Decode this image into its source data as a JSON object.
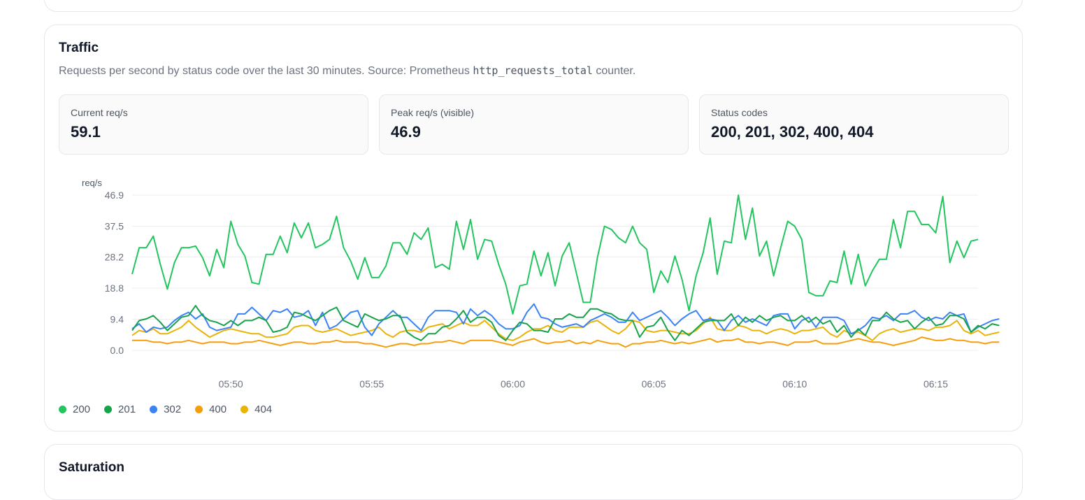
{
  "traffic": {
    "title": "Traffic",
    "description_pre": "Requests per second by status code over the last 30 minutes. Source: Prometheus ",
    "description_code": "http_requests_total",
    "description_post": " counter.",
    "stats": [
      {
        "label": "Current req/s",
        "value": "59.1"
      },
      {
        "label": "Peak req/s (visible)",
        "value": "46.9"
      },
      {
        "label": "Status codes",
        "value": "200, 201, 302, 400, 404"
      }
    ]
  },
  "next_card": {
    "title": "Saturation"
  },
  "chart_data": {
    "type": "line",
    "ylabel": "req/s",
    "ylim": [
      0,
      46.9
    ],
    "y_ticks": [
      "0.0",
      "9.4",
      "18.8",
      "28.2",
      "37.5",
      "46.9"
    ],
    "x_tick_labels": [
      "05:50",
      "05:55",
      "06:00",
      "06:05",
      "06:10",
      "06:15"
    ],
    "x_start_minute": 46.5,
    "x_step_minutes": 0.25,
    "grid": true,
    "legend": "bottom-left",
    "series": [
      {
        "name": "200",
        "color": "#22c55e",
        "values": [
          23,
          31,
          31,
          34.5,
          26,
          18.5,
          26.5,
          31,
          31,
          31.5,
          28,
          22.5,
          30.5,
          25,
          39,
          32,
          28.5,
          20.5,
          20,
          29,
          29,
          34.5,
          29.5,
          38.5,
          34,
          38.5,
          31,
          32,
          33.5,
          40.5,
          31,
          27,
          21.5,
          28,
          22,
          22,
          25.5,
          32.5,
          32.5,
          29,
          35.5,
          33.5,
          37,
          25,
          26,
          24.5,
          39,
          30.5,
          39.5,
          27.5,
          33.5,
          33,
          26,
          20,
          11,
          19.5,
          20,
          30,
          22.5,
          29.5,
          19.5,
          28.5,
          32.5,
          23.5,
          14.5,
          14.5,
          28,
          37.5,
          36.5,
          34,
          32.5,
          37.5,
          32.5,
          30.5,
          17.5,
          24,
          20.5,
          28.5,
          21.5,
          12,
          22.5,
          29.5,
          40,
          23,
          33,
          32.5,
          46.9,
          33.5,
          43,
          28.5,
          33,
          22.5,
          31,
          39,
          37.5,
          33.5,
          17.5,
          16.5,
          16.5,
          21,
          20.5,
          30,
          20,
          29,
          19.5,
          24,
          27.5,
          27.5,
          39.5,
          31,
          42,
          42,
          38,
          38,
          35.5,
          46.5,
          26.5,
          33,
          28,
          33,
          33.5
        ]
      },
      {
        "name": "201",
        "color": "#16a34a",
        "values": [
          6,
          9,
          9.5,
          10.5,
          8.5,
          6,
          8,
          10,
          10.5,
          13.5,
          10.5,
          9,
          8.5,
          7.5,
          9,
          7.5,
          9,
          9,
          10,
          9,
          5.5,
          6,
          7,
          11.5,
          11,
          10,
          9,
          10.5,
          12,
          13,
          9,
          8,
          7,
          11,
          10,
          9,
          9.5,
          10.5,
          10.5,
          5.5,
          4,
          3,
          5,
          5,
          7,
          7.5,
          9.5,
          12,
          8.5,
          10,
          10,
          8.5,
          4.5,
          3,
          6,
          8.5,
          8,
          6,
          6,
          5.5,
          9.5,
          9.5,
          11,
          10,
          10,
          12.5,
          12.5,
          11.5,
          11,
          9.5,
          9,
          9,
          4,
          7,
          7.5,
          10,
          6,
          3,
          6,
          4.5,
          6.5,
          8.5,
          9,
          9,
          9,
          11,
          7.5,
          10,
          8.5,
          10.5,
          9,
          10,
          10.5,
          9,
          9,
          10.5,
          8.5,
          10,
          8,
          9,
          5.5,
          7.5,
          4,
          6.5,
          4.5,
          9,
          9,
          11.5,
          9.5,
          8.5,
          9,
          6.5,
          8.5,
          10,
          7.5,
          8,
          10.5,
          10.5,
          9.5,
          5.5,
          7.5,
          6.5,
          8,
          7.5
        ]
      },
      {
        "name": "302",
        "color": "#3b82f6",
        "values": [
          6.5,
          8,
          5.5,
          7,
          6.5,
          7,
          9,
          10.5,
          11.5,
          9.5,
          11,
          7,
          6,
          6.5,
          7,
          11,
          11,
          13,
          11,
          9,
          12,
          11.5,
          12.5,
          10,
          10.5,
          12,
          7.5,
          11.5,
          6.5,
          7.5,
          9.5,
          11.5,
          12,
          7,
          4.5,
          8,
          10,
          12,
          10,
          10,
          8,
          6,
          10,
          12,
          12,
          12,
          11.5,
          8,
          12.5,
          10.5,
          12,
          10.5,
          8,
          6.5,
          6.5,
          7.5,
          11.5,
          14,
          10,
          9.5,
          8,
          7,
          7.5,
          8,
          7,
          9,
          10,
          11,
          10,
          8.5,
          8.5,
          11.5,
          9,
          10,
          11,
          12,
          10,
          7.5,
          9.5,
          11,
          12,
          9,
          9.5,
          9,
          6,
          9,
          10.5,
          8.5,
          9.5,
          8.5,
          7.5,
          10.5,
          11,
          11,
          6.5,
          9,
          10,
          7,
          10,
          10,
          10,
          9,
          5,
          6,
          7.5,
          10,
          9.5,
          10.5,
          9,
          11,
          11,
          12,
          10,
          9,
          10,
          9.5,
          11.5,
          10.5,
          11,
          5.5,
          7,
          8,
          9,
          9.5
        ]
      },
      {
        "name": "400",
        "color": "#f59e0b",
        "values": [
          3,
          3,
          3,
          2.5,
          2.5,
          2,
          2.5,
          2.5,
          3,
          2.5,
          2,
          2.5,
          2.5,
          2.5,
          2,
          2,
          2.5,
          2.5,
          3,
          2.5,
          2,
          1.5,
          2,
          2.5,
          2.5,
          2,
          2,
          2.5,
          2.5,
          3,
          2.5,
          2.5,
          2.5,
          2,
          2,
          1.5,
          1,
          1.5,
          2,
          2,
          1.5,
          2,
          2,
          2.5,
          2.5,
          3,
          2.5,
          2,
          3,
          3,
          3,
          3,
          2.5,
          2,
          1.5,
          2.5,
          3,
          3.5,
          2.5,
          2,
          2.5,
          2.5,
          3,
          2,
          2.5,
          2,
          3,
          2.5,
          2,
          2,
          1,
          2,
          2,
          2.5,
          2.5,
          3,
          2.5,
          2,
          2.5,
          2,
          2.5,
          3,
          3.5,
          2.5,
          3,
          3,
          3.5,
          2.5,
          2.5,
          2,
          2.5,
          2.5,
          2,
          1.5,
          2.5,
          2.5,
          2.5,
          3,
          2,
          2,
          2,
          2.5,
          3,
          3.5,
          3,
          2.5,
          2.5,
          2,
          1.5,
          2,
          2.5,
          3,
          4,
          3.5,
          3,
          3,
          3.5,
          3,
          3,
          2.5,
          2.5,
          2,
          2.5,
          2.5
        ]
      },
      {
        "name": "404",
        "color": "#eab308",
        "values": [
          4.5,
          6,
          5.5,
          6.5,
          5,
          5,
          6,
          7,
          9,
          7,
          5.5,
          4,
          5,
          6,
          6.5,
          6,
          5.5,
          5,
          5,
          4,
          4,
          4.5,
          5,
          7,
          7.5,
          7.5,
          6,
          5.5,
          6,
          6.5,
          5.5,
          4.5,
          5,
          5.5,
          6,
          7,
          5,
          4,
          5.5,
          6,
          6,
          5.5,
          7,
          7.5,
          8,
          6.5,
          7.5,
          8.5,
          7.5,
          7.5,
          9,
          7,
          5,
          3.5,
          3,
          4,
          5.5,
          6.5,
          6.5,
          7.5,
          6,
          5.5,
          7,
          7,
          7,
          8.5,
          9,
          7.5,
          6,
          5,
          6.5,
          9,
          8.5,
          6,
          5.5,
          6,
          6,
          5.5,
          5,
          5,
          6,
          8,
          10,
          6.5,
          6,
          6,
          7.5,
          7,
          6,
          6,
          5,
          6,
          6.5,
          6,
          5,
          6,
          6,
          6.5,
          7,
          5,
          4,
          6,
          5,
          5.5,
          4.5,
          3,
          5,
          6,
          6.5,
          5.5,
          6,
          6.5,
          6.5,
          6,
          7,
          7,
          7.5,
          9,
          6,
          5,
          6,
          4.5,
          5,
          5.5
        ]
      }
    ]
  }
}
